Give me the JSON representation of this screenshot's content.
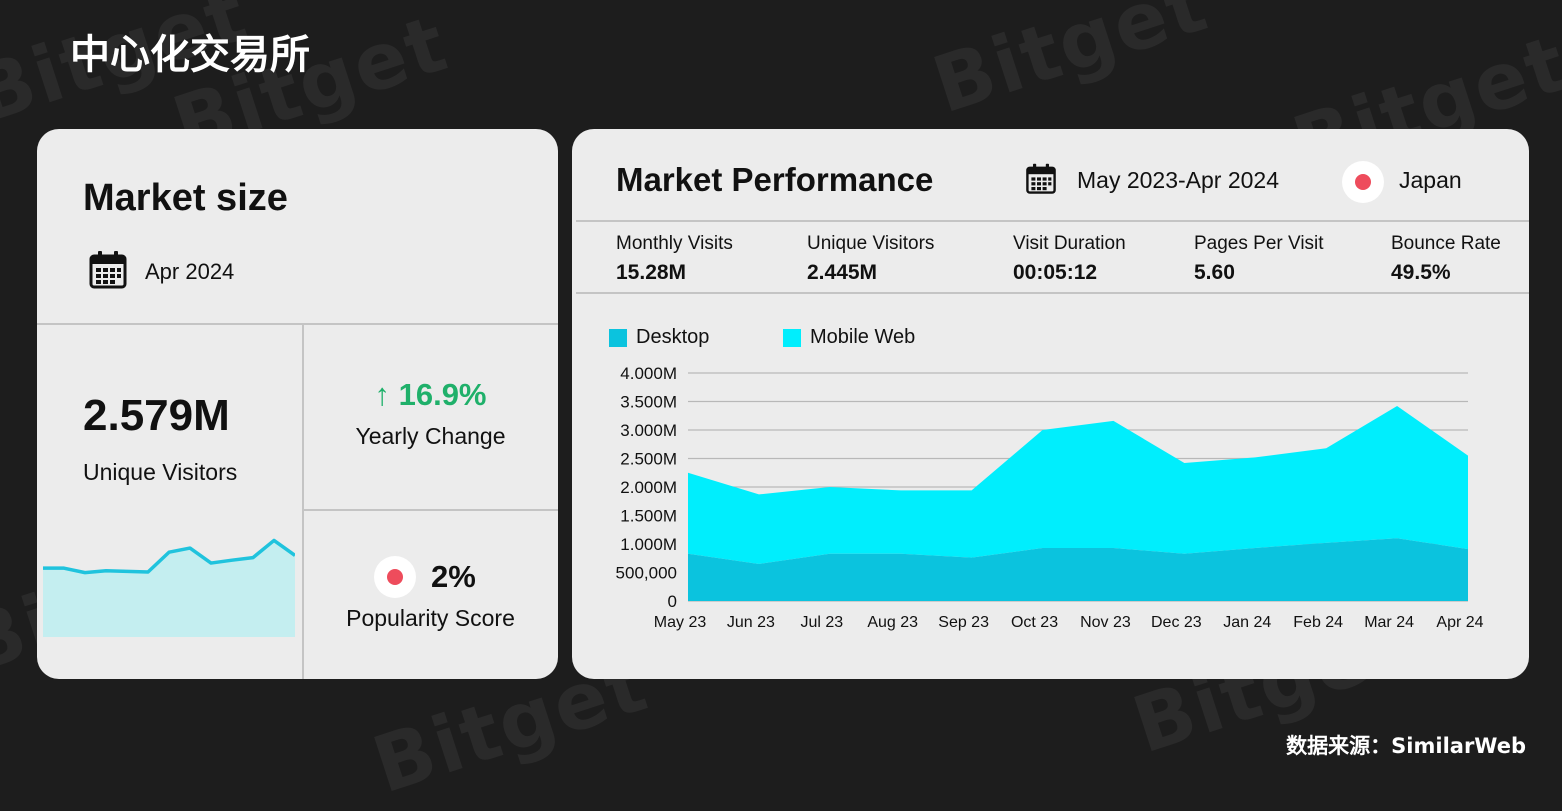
{
  "page": {
    "title": "中心化交易所",
    "source": "数据来源：SimilarWeb",
    "watermark": "Bitget"
  },
  "market_size": {
    "title": "Market size",
    "date": "Apr 2024",
    "unique_visitors_value": "2.579M",
    "unique_visitors_label": "Unique Visitors",
    "yearly_change_value": "↑ 16.9%",
    "yearly_change_label": "Yearly Change",
    "popularity_value": "2%",
    "popularity_label": "Popularity Score",
    "colors": {
      "positive": "#1fb06a",
      "country_dot": "#ee4c5c",
      "spark_line": "#20c3dd",
      "spark_fill": "#c4eef0"
    }
  },
  "market_performance": {
    "title": "Market Performance",
    "date_range": "May 2023-Apr 2024",
    "country": "Japan",
    "metrics": [
      {
        "label": "Monthly Visits",
        "value": "15.28M"
      },
      {
        "label": "Unique Visitors",
        "value": "2.445M"
      },
      {
        "label": "Visit Duration",
        "value": "00:05:12"
      },
      {
        "label": "Pages Per Visit",
        "value": "5.60"
      },
      {
        "label": "Bounce Rate",
        "value": "49.5%"
      }
    ]
  },
  "chart_data": [
    {
      "type": "area",
      "stacked": true,
      "categories": [
        "May 23",
        "Jun 23",
        "Jul 23",
        "Aug 23",
        "Sep 23",
        "Oct 23",
        "Nov 23",
        "Dec 23",
        "Jan 24",
        "Feb 24",
        "Mar 24",
        "Apr 24"
      ],
      "series": [
        {
          "name": "Desktop",
          "color": "#0bc3de",
          "values": [
            830000,
            650000,
            830000,
            830000,
            760000,
            930000,
            930000,
            830000,
            930000,
            1020000,
            1100000,
            910000
          ]
        },
        {
          "name": "Mobile Web",
          "color": "#00eefd",
          "values": [
            1420000,
            1220000,
            1170000,
            1110000,
            1180000,
            2070000,
            2230000,
            1590000,
            1590000,
            1660000,
            2320000,
            1640000
          ]
        }
      ],
      "y_ticks": [
        "0",
        "500,000",
        "1.000M",
        "1.500M",
        "2.000M",
        "2.500M",
        "3.000M",
        "3.500M",
        "4.000M"
      ],
      "ylim": [
        0,
        4000000
      ],
      "grid": true,
      "legend": "top-left"
    },
    {
      "type": "area",
      "values": [
        2.16,
        2.16,
        2.02,
        2.08,
        2.06,
        2.04,
        2.66,
        2.79,
        2.32,
        2.41,
        2.49,
        3.03,
        2.56
      ],
      "color": "#20c3dd"
    }
  ]
}
